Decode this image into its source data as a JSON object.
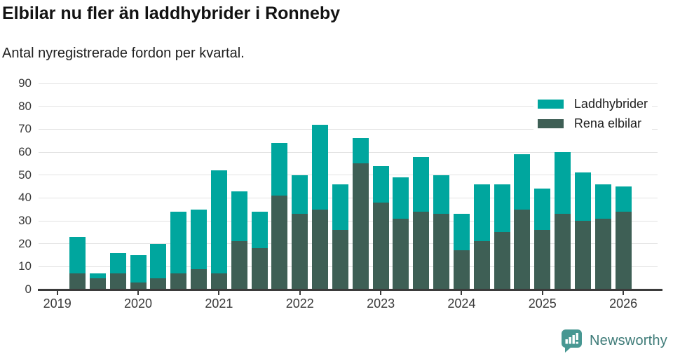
{
  "header": {
    "title": "Elbilar nu fler än laddhybrider i Ronneby",
    "subtitle": "Antal nyregistrerade fordon per kvartal."
  },
  "chart_data": {
    "type": "bar",
    "stacked": true,
    "title": "Elbilar nu fler än laddhybrider i Ronneby",
    "subtitle": "Antal nyregistrerade fordon per kvartal.",
    "x": [
      "2019 Q2",
      "2019 Q3",
      "2019 Q4",
      "2020 Q1",
      "2020 Q2",
      "2020 Q3",
      "2020 Q4",
      "2021 Q1",
      "2021 Q2",
      "2021 Q3",
      "2021 Q4",
      "2022 Q1",
      "2022 Q2",
      "2022 Q3",
      "2022 Q4",
      "2023 Q1",
      "2023 Q2",
      "2023 Q3",
      "2023 Q4",
      "2024 Q1",
      "2024 Q2",
      "2024 Q3",
      "2024 Q4",
      "2025 Q1",
      "2025 Q2",
      "2025 Q3",
      "2025 Q4",
      "2026 Q1"
    ],
    "series": [
      {
        "name": "Laddhybrider",
        "color": "#00a69e",
        "values": [
          16,
          2,
          9,
          12,
          15,
          27,
          26,
          45,
          22,
          16,
          23,
          17,
          37,
          20,
          11,
          16,
          18,
          24,
          17,
          16,
          25,
          21,
          24,
          18,
          27,
          21,
          15,
          11
        ]
      },
      {
        "name": "Rena elbilar",
        "color": "#3e5f55",
        "values": [
          7,
          5,
          7,
          3,
          5,
          7,
          9,
          7,
          21,
          18,
          41,
          33,
          35,
          26,
          55,
          38,
          31,
          34,
          33,
          17,
          21,
          25,
          35,
          26,
          33,
          30,
          31,
          34
        ]
      }
    ],
    "stack_order": [
      "Rena elbilar",
      "Laddhybrider"
    ],
    "totals": [
      23,
      7,
      16,
      15,
      20,
      34,
      35,
      52,
      43,
      34,
      64,
      50,
      72,
      46,
      66,
      54,
      49,
      58,
      50,
      33,
      46,
      46,
      59,
      44,
      60,
      51,
      46,
      45
    ],
    "ylim": [
      0,
      90
    ],
    "yticks": [
      0,
      10,
      20,
      30,
      40,
      50,
      60,
      70,
      80,
      90
    ],
    "xticks": [
      "2019",
      "2020",
      "2021",
      "2022",
      "2023",
      "2024",
      "2025",
      "2026"
    ],
    "grid": "horizontal",
    "legend_position": "top-right"
  },
  "legend": {
    "items": [
      {
        "label": "Laddhybrider",
        "color": "#00a69e"
      },
      {
        "label": "Rena elbilar",
        "color": "#3e5f55"
      }
    ]
  },
  "footer": {
    "brand": "Newsworthy"
  },
  "colors": {
    "laddhybrider": "#00a69e",
    "rena_elbilar": "#3e5f55",
    "gridline": "#e3e3e3",
    "axis": "#3b3b3b",
    "logo": "#479792",
    "brand_text": "#3e7b78"
  }
}
